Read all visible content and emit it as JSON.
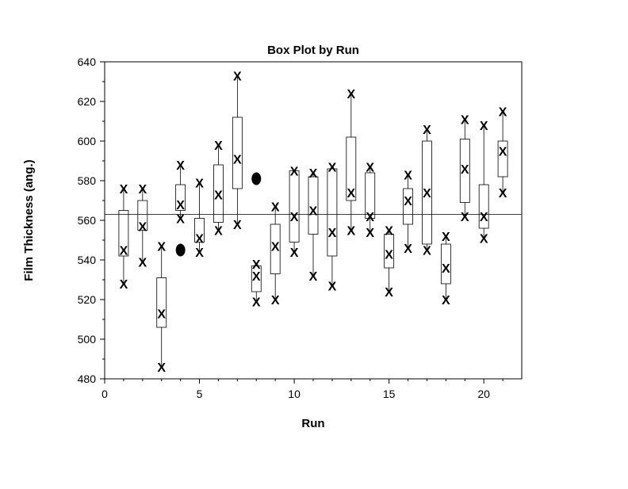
{
  "chart_data": {
    "type": "box",
    "title": "Box Plot by Run",
    "xlabel": "Run",
    "ylabel": "Film Thickness (ang.)",
    "xlim": [
      0,
      22
    ],
    "ylim": [
      480,
      640
    ],
    "xticks": [
      0,
      5,
      10,
      15,
      20
    ],
    "yticks": [
      480,
      500,
      520,
      540,
      560,
      580,
      600,
      620,
      640
    ],
    "reference_line": 563,
    "point_marker": "X",
    "grid": false,
    "boxes": [
      {
        "run": 1,
        "q1": 542,
        "q3": 565,
        "whisker_low": 528,
        "whisker_high": 576,
        "points": [
          528,
          545,
          576
        ],
        "outliers": []
      },
      {
        "run": 2,
        "q1": 555,
        "q3": 570,
        "whisker_low": 539,
        "whisker_high": 576,
        "points": [
          539,
          557,
          576
        ],
        "outliers": []
      },
      {
        "run": 3,
        "q1": 506,
        "q3": 531,
        "whisker_low": 486,
        "whisker_high": 547,
        "points": [
          486,
          513,
          547
        ],
        "outliers": []
      },
      {
        "run": 4,
        "q1": 565,
        "q3": 578,
        "whisker_low": 561,
        "whisker_high": 588,
        "points": [
          561,
          568,
          588
        ],
        "outliers": [
          545
        ]
      },
      {
        "run": 5,
        "q1": 549,
        "q3": 561,
        "whisker_low": 544,
        "whisker_high": 579,
        "points": [
          544,
          551,
          579
        ],
        "outliers": []
      },
      {
        "run": 6,
        "q1": 559,
        "q3": 588,
        "whisker_low": 555,
        "whisker_high": 598,
        "points": [
          555,
          573,
          598
        ],
        "outliers": []
      },
      {
        "run": 7,
        "q1": 576,
        "q3": 612,
        "whisker_low": 558,
        "whisker_high": 633,
        "points": [
          558,
          591,
          633
        ],
        "outliers": []
      },
      {
        "run": 8,
        "q1": 524,
        "q3": 537,
        "whisker_low": 519,
        "whisker_high": 538,
        "points": [
          519,
          532,
          538
        ],
        "outliers": [
          581
        ]
      },
      {
        "run": 9,
        "q1": 533,
        "q3": 558,
        "whisker_low": 520,
        "whisker_high": 567,
        "points": [
          520,
          547,
          567
        ],
        "outliers": []
      },
      {
        "run": 10,
        "q1": 549,
        "q3": 585,
        "whisker_low": 544,
        "whisker_high": 585,
        "points": [
          544,
          562,
          585
        ],
        "outliers": []
      },
      {
        "run": 11,
        "q1": 553,
        "q3": 582,
        "whisker_low": 532,
        "whisker_high": 584,
        "points": [
          532,
          565,
          584
        ],
        "outliers": []
      },
      {
        "run": 12,
        "q1": 542,
        "q3": 586,
        "whisker_low": 527,
        "whisker_high": 587,
        "points": [
          527,
          554,
          587
        ],
        "outliers": []
      },
      {
        "run": 13,
        "q1": 570,
        "q3": 602,
        "whisker_low": 555,
        "whisker_high": 624,
        "points": [
          555,
          574,
          624
        ],
        "outliers": []
      },
      {
        "run": 14,
        "q1": 561,
        "q3": 584,
        "whisker_low": 554,
        "whisker_high": 587,
        "points": [
          554,
          562,
          587
        ],
        "outliers": []
      },
      {
        "run": 15,
        "q1": 536,
        "q3": 553,
        "whisker_low": 524,
        "whisker_high": 555,
        "points": [
          524,
          543,
          555
        ],
        "outliers": []
      },
      {
        "run": 16,
        "q1": 558,
        "q3": 576,
        "whisker_low": 546,
        "whisker_high": 583,
        "points": [
          546,
          570,
          583
        ],
        "outliers": []
      },
      {
        "run": 17,
        "q1": 548,
        "q3": 600,
        "whisker_low": 545,
        "whisker_high": 606,
        "points": [
          545,
          574,
          606
        ],
        "outliers": []
      },
      {
        "run": 18,
        "q1": 528,
        "q3": 548,
        "whisker_low": 520,
        "whisker_high": 552,
        "points": [
          520,
          536,
          552
        ],
        "outliers": []
      },
      {
        "run": 19,
        "q1": 569,
        "q3": 601,
        "whisker_low": 562,
        "whisker_high": 611,
        "points": [
          562,
          586,
          611
        ],
        "outliers": []
      },
      {
        "run": 20,
        "q1": 556,
        "q3": 578,
        "whisker_low": 551,
        "whisker_high": 608,
        "points": [
          551,
          562,
          608
        ],
        "outliers": []
      },
      {
        "run": 21,
        "q1": 582,
        "q3": 600,
        "whisker_low": 574,
        "whisker_high": 615,
        "points": [
          574,
          595,
          615
        ],
        "outliers": []
      }
    ]
  }
}
